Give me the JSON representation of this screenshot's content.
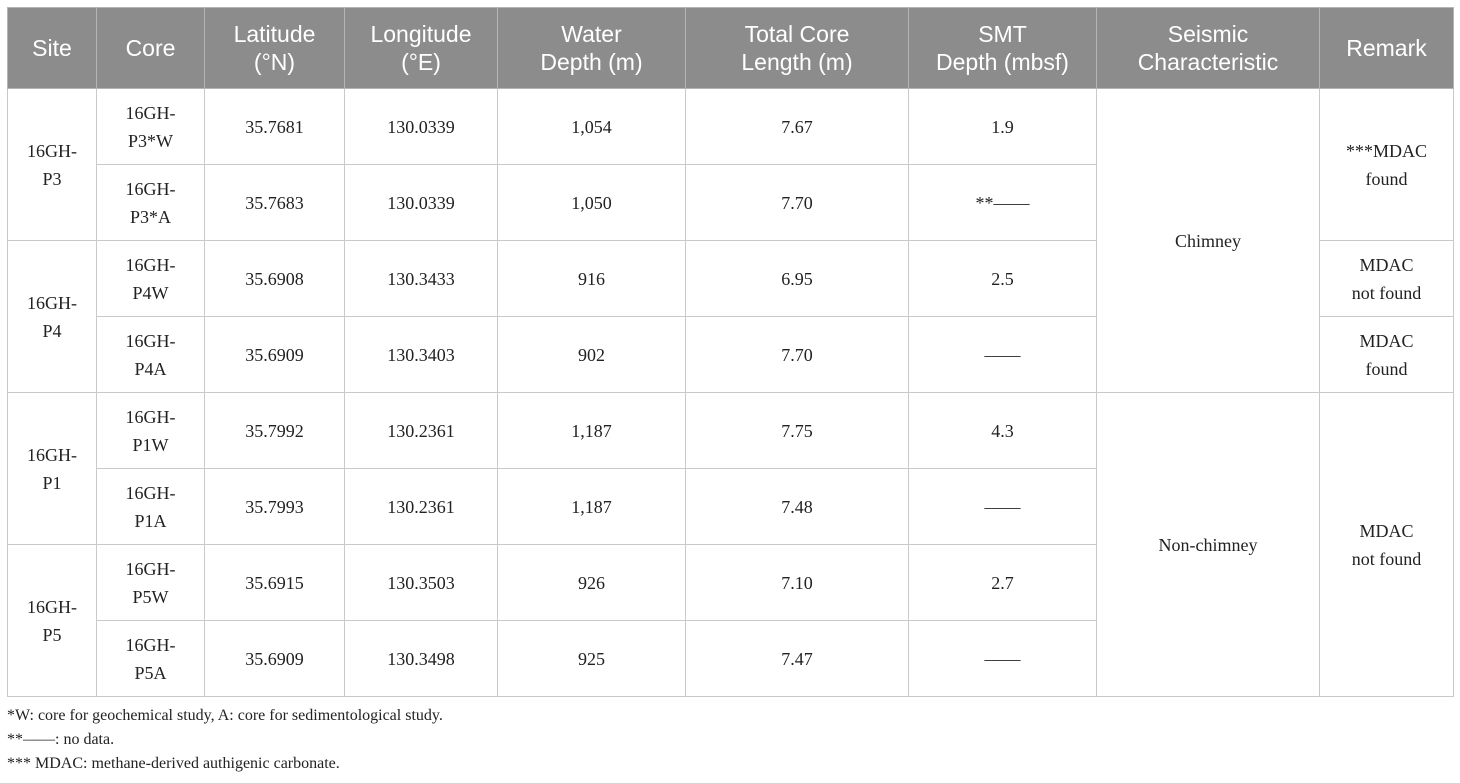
{
  "table": {
    "headers": [
      [
        "Site"
      ],
      [
        "Core"
      ],
      [
        "Latitude",
        "(°N)"
      ],
      [
        "Longitude",
        "(°E)"
      ],
      [
        "Water",
        "Depth (m)"
      ],
      [
        "Total Core",
        "Length (m)"
      ],
      [
        "SMT",
        "Depth (mbsf)"
      ],
      [
        "Seismic",
        "Characteristic"
      ],
      [
        "Remark"
      ]
    ],
    "sites": [
      [
        "16GH-",
        "P3"
      ],
      [
        "16GH-",
        "P4"
      ],
      [
        "16GH-",
        "P1"
      ],
      [
        "16GH-",
        "P5"
      ]
    ],
    "seismic": [
      "Chimney",
      "Non-chimney"
    ],
    "remarks": [
      [
        "***MDAC",
        "found"
      ],
      [
        "MDAC",
        "not found"
      ],
      [
        "MDAC",
        "found"
      ],
      [
        "MDAC",
        "not found"
      ]
    ],
    "rows": [
      {
        "core": [
          "16GH-",
          "P3*W"
        ],
        "lat": "35.7681",
        "lon": "130.0339",
        "depth": "1,054",
        "length": "7.67",
        "smt": "1.9"
      },
      {
        "core": [
          "16GH-",
          "P3*A"
        ],
        "lat": "35.7683",
        "lon": "130.0339",
        "depth": "1,050",
        "length": "7.70",
        "smt": "**——"
      },
      {
        "core": [
          "16GH-",
          "P4W"
        ],
        "lat": "35.6908",
        "lon": "130.3433",
        "depth": "916",
        "length": "6.95",
        "smt": "2.5"
      },
      {
        "core": [
          "16GH-",
          "P4A"
        ],
        "lat": "35.6909",
        "lon": "130.3403",
        "depth": "902",
        "length": "7.70",
        "smt": "——"
      },
      {
        "core": [
          "16GH-",
          "P1W"
        ],
        "lat": "35.7992",
        "lon": "130.2361",
        "depth": "1,187",
        "length": "7.75",
        "smt": "4.3"
      },
      {
        "core": [
          "16GH-",
          "P1A"
        ],
        "lat": "35.7993",
        "lon": "130.2361",
        "depth": "1,187",
        "length": "7.48",
        "smt": "——"
      },
      {
        "core": [
          "16GH-",
          "P5W"
        ],
        "lat": "35.6915",
        "lon": "130.3503",
        "depth": "926",
        "length": "7.10",
        "smt": "2.7"
      },
      {
        "core": [
          "16GH-",
          "P5A"
        ],
        "lat": "35.6909",
        "lon": "130.3498",
        "depth": "925",
        "length": "7.47",
        "smt": "——"
      }
    ]
  },
  "footnotes": [
    "*W: core for geochemical study, A: core for sedimentological study.",
    "**——: no data.",
    "*** MDAC: methane-derived authigenic carbonate."
  ]
}
